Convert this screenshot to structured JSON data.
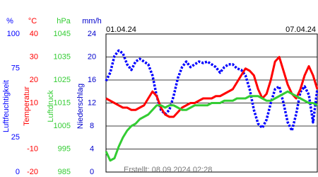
{
  "chart_data": {
    "type": "line",
    "x_labels": [
      "01.04.24",
      "07.04.24"
    ],
    "footer": "Erstellt: 08.09.2024 02:28",
    "grid": true,
    "axes": [
      {
        "unit": "%",
        "title": "Luftfeuchtigkeit",
        "color": "#0000ff",
        "lim": [
          0,
          100
        ],
        "ticks": [
          0,
          25,
          75,
          100
        ]
      },
      {
        "unit": "°C",
        "title": "Temperatur",
        "color": "#ff0000",
        "lim": [
          -20,
          40
        ],
        "ticks": [
          -20,
          -10,
          10,
          20,
          30,
          40
        ]
      },
      {
        "unit": "hPa",
        "title": "Luftdruck",
        "color": "#33cc33",
        "lim": [
          985,
          1045
        ],
        "ticks": [
          985,
          995,
          1005,
          1015,
          1025,
          1035,
          1045
        ]
      },
      {
        "unit": "mm/h",
        "title": "Niederschlag",
        "color": "#0000cc",
        "lim": [
          0,
          24
        ],
        "ticks": [
          0,
          4,
          8,
          12,
          16,
          20,
          24
        ]
      }
    ],
    "series": [
      {
        "axis": 0,
        "color": "#0000ff",
        "style": "dotted",
        "values": [
          66,
          72,
          84,
          88,
          86,
          78,
          74,
          80,
          82,
          80,
          78,
          70,
          55,
          45,
          42,
          45,
          55,
          68,
          76,
          80,
          76,
          78,
          80,
          79,
          80,
          78,
          76,
          72,
          76,
          78,
          78,
          75,
          74,
          70,
          60,
          45,
          35,
          32,
          38,
          50,
          60,
          62,
          50,
          36,
          30,
          42,
          58,
          62,
          56,
          36,
          60
        ]
      },
      {
        "axis": 1,
        "color": "#ff0000",
        "style": "solid",
        "values": [
          12,
          11,
          10,
          9,
          8,
          8,
          7,
          7,
          8,
          9,
          12,
          15,
          13,
          8,
          5,
          4,
          4,
          6,
          8,
          9,
          10,
          10,
          11,
          12,
          12,
          12,
          13,
          13,
          14,
          15,
          16,
          19,
          22,
          25,
          24,
          22,
          16,
          12,
          14,
          20,
          28,
          30,
          24,
          18,
          14,
          12,
          16,
          22,
          26,
          22,
          16
        ]
      },
      {
        "axis": 2,
        "color": "#33cc33",
        "style": "solid",
        "values": [
          994,
          990,
          991,
          996,
          1000,
          1003,
          1005,
          1006,
          1008,
          1009,
          1010,
          1012,
          1014,
          1014,
          1013,
          1014,
          1014,
          1013,
          1012,
          1012,
          1013,
          1014,
          1014,
          1014,
          1014,
          1015,
          1015,
          1015,
          1016,
          1016,
          1016,
          1017,
          1017,
          1017,
          1018,
          1018,
          1018,
          1017,
          1016,
          1016,
          1017,
          1018,
          1019,
          1020,
          1019,
          1018,
          1017,
          1016,
          1015,
          1015,
          1014
        ]
      }
    ]
  }
}
